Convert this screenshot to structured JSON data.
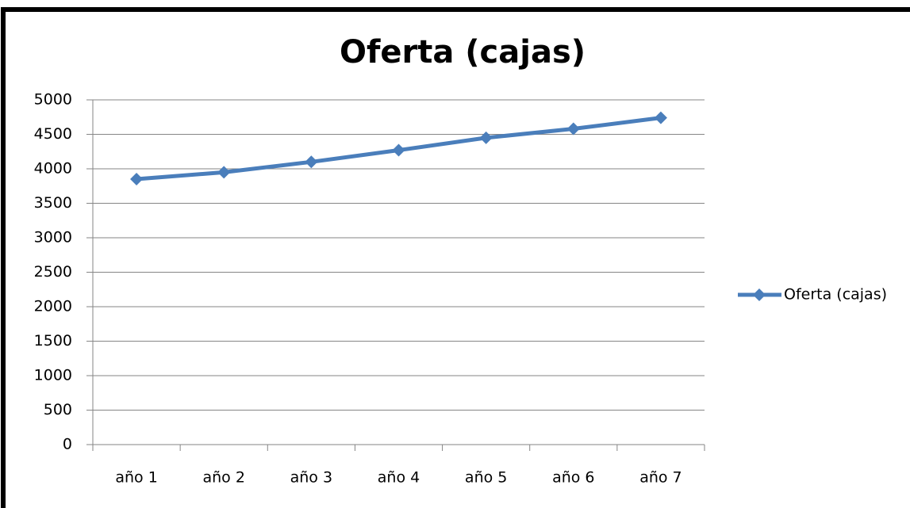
{
  "chart_data": {
    "type": "line",
    "title": "Oferta (cajas)",
    "categories": [
      "año 1",
      "año 2",
      "año 3",
      "año 4",
      "año 5",
      "año 6",
      "año 7"
    ],
    "series": [
      {
        "name": "Oferta (cajas)",
        "color": "#4a7ebb",
        "values": [
          3850,
          3950,
          4100,
          4270,
          4450,
          4580,
          4740
        ]
      }
    ],
    "ylim": [
      0,
      5000
    ],
    "yticks": [
      0,
      500,
      1000,
      1500,
      2000,
      2500,
      3000,
      3500,
      4000,
      4500,
      5000
    ],
    "grid": true,
    "legend": "right"
  }
}
